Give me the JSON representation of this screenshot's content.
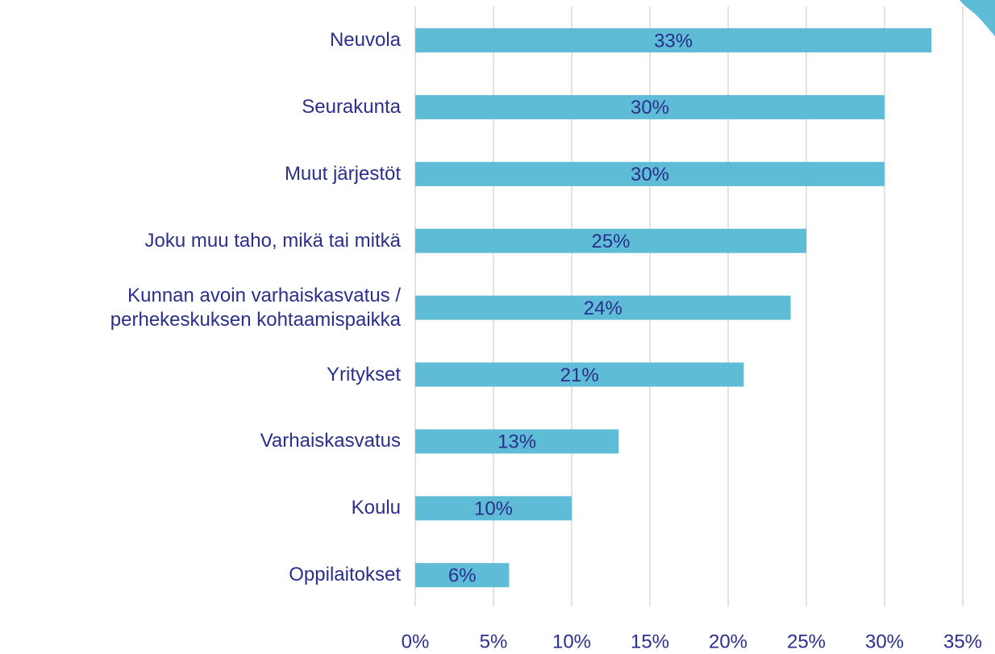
{
  "chart_data": {
    "type": "bar",
    "orientation": "horizontal",
    "categories": [
      "Neuvola",
      "Seurakunta",
      "Muut järjestöt",
      "Joku muu taho, mikä tai mitkä",
      "Kunnan avoin varhaiskasvatus /\nperhekeskuksen kohtaamispaikka",
      "Yritykset",
      "Varhaiskasvatus",
      "Koulu",
      "Oppilaitokset"
    ],
    "values": [
      33,
      30,
      30,
      25,
      24,
      21,
      13,
      10,
      6
    ],
    "value_labels": [
      "33%",
      "30%",
      "30%",
      "25%",
      "24%",
      "21%",
      "13%",
      "10%",
      "6%"
    ],
    "color": "#5fbcd6",
    "xlim": [
      0,
      35
    ],
    "xticks": [
      {
        "value": 0,
        "label": "0%"
      },
      {
        "value": 5,
        "label": "5%"
      },
      {
        "value": 10,
        "label": "10%"
      },
      {
        "value": 15,
        "label": "15%"
      },
      {
        "value": 20,
        "label": "20%"
      },
      {
        "value": 25,
        "label": "25%"
      },
      {
        "value": 30,
        "label": "30%"
      },
      {
        "value": 35,
        "label": "35%"
      }
    ],
    "grid": true
  }
}
